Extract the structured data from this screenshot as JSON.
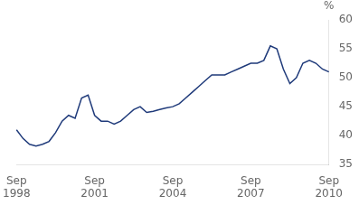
{
  "chart_data": {
    "type": "line",
    "ylabel": "%",
    "categories": [
      "Sep\n1998",
      null,
      null,
      null,
      null,
      null,
      null,
      null,
      null,
      null,
      null,
      null,
      "Sep\n2001",
      null,
      null,
      null,
      null,
      null,
      null,
      null,
      null,
      null,
      null,
      null,
      "Sep\n2004",
      null,
      null,
      null,
      null,
      null,
      null,
      null,
      null,
      null,
      null,
      null,
      "Sep\n2007",
      null,
      null,
      null,
      null,
      null,
      null,
      null,
      null,
      null,
      null,
      null,
      "Sep\n2010"
    ],
    "values": [
      41.0,
      39.5,
      38.5,
      38.2,
      38.5,
      39.0,
      40.5,
      42.5,
      43.5,
      43.0,
      46.5,
      47.0,
      43.5,
      42.5,
      42.5,
      42.0,
      42.5,
      43.5,
      44.5,
      45.0,
      44.0,
      44.2,
      44.5,
      44.8,
      45.0,
      45.5,
      46.5,
      47.5,
      48.5,
      49.5,
      50.5,
      50.5,
      50.5,
      51.0,
      51.5,
      52.0,
      52.5,
      52.5,
      53.0,
      55.5,
      55.0,
      51.5,
      49.0,
      50.0,
      52.5,
      53.0,
      52.5,
      51.5,
      51.0
    ],
    "color": "#1f3a7a",
    "ylim": [
      35,
      60
    ],
    "yticks": [
      35,
      40,
      45,
      50,
      55,
      60
    ],
    "grid": false
  }
}
